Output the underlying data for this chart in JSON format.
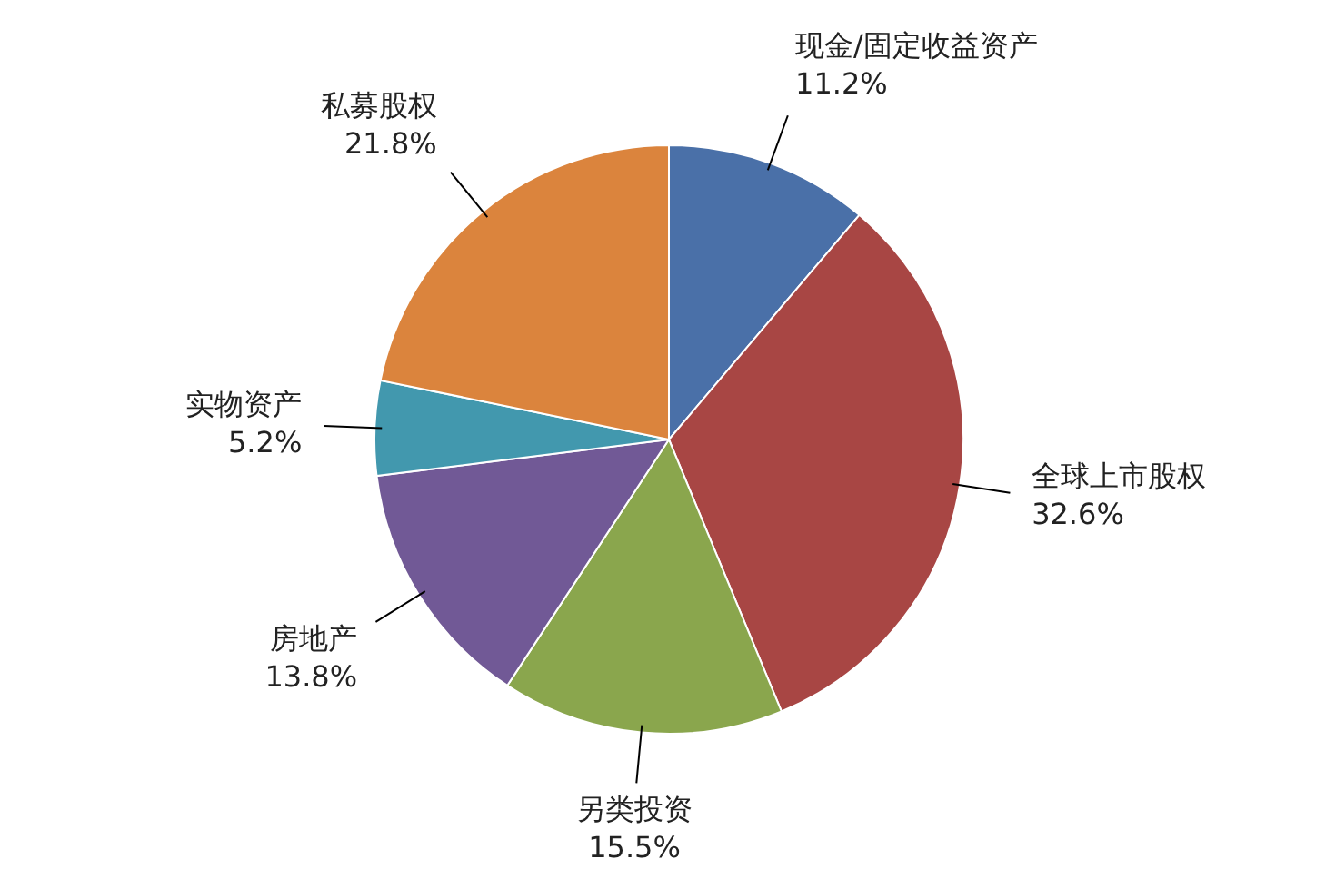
{
  "chart_data": {
    "type": "pie",
    "categories": [
      "现金/固定收益资产",
      "全球上市股权",
      "另类投资",
      "房地产",
      "实物资产",
      "私募股权"
    ],
    "values": [
      11.2,
      32.6,
      15.5,
      13.8,
      5.2,
      21.8
    ],
    "value_labels": [
      "11.2%",
      "32.6%",
      "15.5%",
      "13.8%",
      "5.2%",
      "21.8%"
    ],
    "colors": [
      "#4a70a8",
      "#a84644",
      "#8aa64d",
      "#715996",
      "#4298ae",
      "#db843d"
    ]
  }
}
